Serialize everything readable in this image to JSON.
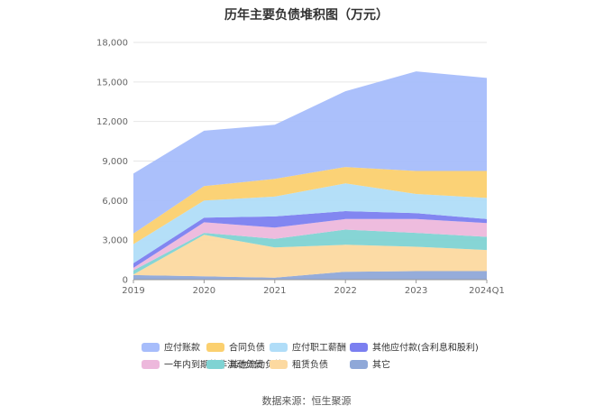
{
  "chart_data": {
    "type": "area",
    "stacked": true,
    "title": "历年主要负债堆积图（万元）",
    "categories": [
      "2019",
      "2020",
      "2021",
      "2022",
      "2023",
      "2024Q1"
    ],
    "ylim": [
      0,
      18000
    ],
    "yticks": [
      "0",
      "3,000",
      "6,000",
      "9,000",
      "12,000",
      "15,000",
      "18,000"
    ],
    "ytick_values": [
      0,
      3000,
      6000,
      9000,
      12000,
      15000,
      18000
    ],
    "grid": true,
    "legend_position": "bottom",
    "series": [
      {
        "name": "其它",
        "color": "#8fa8d8",
        "values": [
          350,
          250,
          150,
          600,
          650,
          650
        ]
      },
      {
        "name": "租赁负债",
        "color": "#fcd9a0",
        "values": [
          50,
          3150,
          2300,
          2050,
          1850,
          1600
        ]
      },
      {
        "name": "其他流动负债",
        "color": "#7fd3d3",
        "values": [
          300,
          150,
          650,
          1150,
          1050,
          1000
        ]
      },
      {
        "name": "一年内到期的非流动负债",
        "color": "#edb8dc",
        "values": [
          200,
          800,
          850,
          800,
          1050,
          1050
        ]
      },
      {
        "name": "其他应付款(含利息和股利)",
        "color": "#7b7ff0",
        "values": [
          350,
          350,
          850,
          600,
          450,
          300
        ]
      },
      {
        "name": "应付职工薪酬",
        "color": "#b0ddf8",
        "values": [
          1450,
          1300,
          1500,
          2100,
          1450,
          1600
        ]
      },
      {
        "name": "合同负债",
        "color": "#fbd06f",
        "values": [
          800,
          1100,
          1350,
          1250,
          1750,
          2050
        ]
      },
      {
        "name": "应付账款",
        "color": "#a7bdfb",
        "values": [
          4550,
          4200,
          4100,
          5750,
          7550,
          7050
        ]
      }
    ],
    "legend_order": [
      "应付账款",
      "合同负债",
      "应付职工薪酬",
      "其他应付款(含利息和股利)",
      "一年内到期的非流动负债",
      "其他流动负债",
      "租赁负债",
      "其它"
    ]
  },
  "source_text": "数据来源：恒生聚源"
}
